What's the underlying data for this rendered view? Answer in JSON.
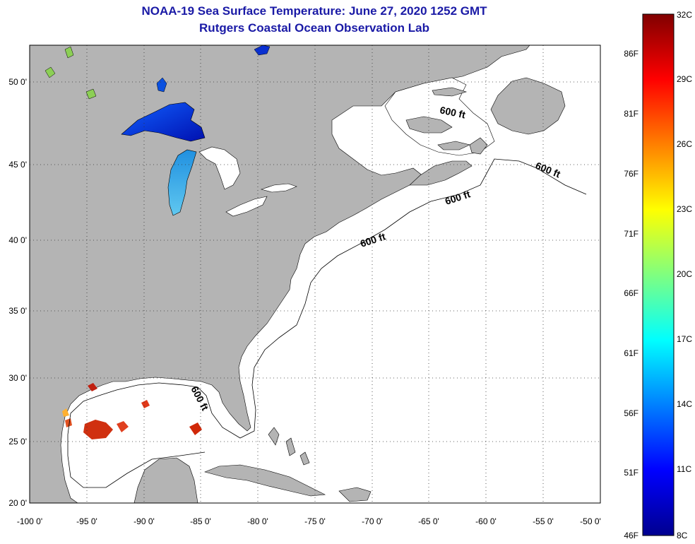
{
  "title": {
    "line1": "NOAA-19 Sea Surface Temperature:  June 27, 2020 1252 GMT",
    "line2": "Rutgers Coastal Ocean Observation Lab"
  },
  "map": {
    "lon_ticks": [
      "-100 0'",
      "-95 0'",
      "-90 0'",
      "-85 0'",
      "-80 0'",
      "-75 0'",
      "-70 0'",
      "-65 0'",
      "-60 0'",
      "-55 0'",
      "-50 0'"
    ],
    "lat_ticks": [
      "50 0'",
      "45 0'",
      "40 0'",
      "35 0'",
      "30 0'",
      "25 0'",
      "20 0'"
    ],
    "contour_labels": [
      "600 ft",
      "600 ft",
      "600 ft",
      "600 ft",
      "600 ft"
    ],
    "colors": {
      "land": "#b4b4b4",
      "ocean": "#ffffff",
      "grid": "#333333"
    }
  },
  "colorbar": {
    "celsius_labels": [
      "32C",
      "29C",
      "26C",
      "23C",
      "20C",
      "17C",
      "14C",
      "11C",
      "8C"
    ],
    "fahrenheit_labels": [
      "86F",
      "81F",
      "76F",
      "71F",
      "66F",
      "61F",
      "56F",
      "51F",
      "46F"
    ]
  }
}
